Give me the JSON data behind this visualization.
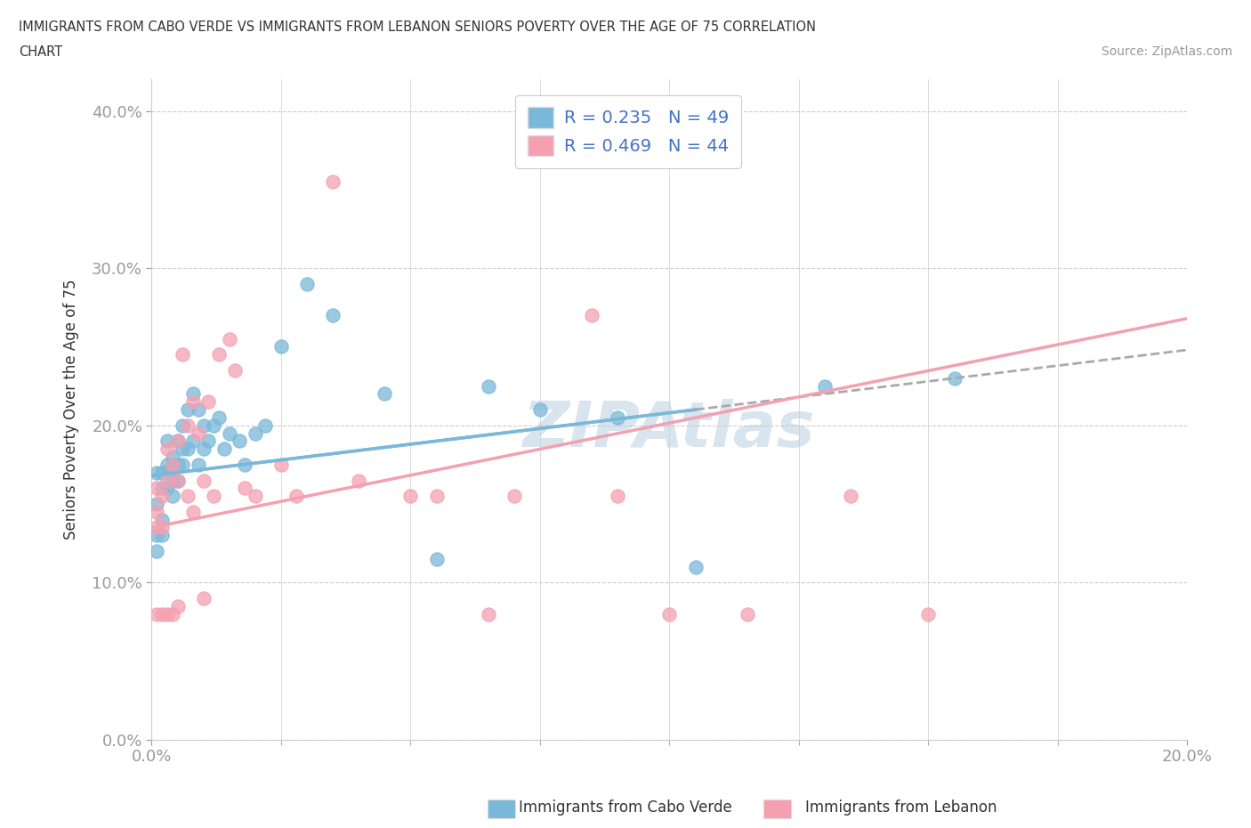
{
  "title_line1": "IMMIGRANTS FROM CABO VERDE VS IMMIGRANTS FROM LEBANON SENIORS POVERTY OVER THE AGE OF 75 CORRELATION",
  "title_line2": "CHART",
  "source": "Source: ZipAtlas.com",
  "ylabel": "Seniors Poverty Over the Age of 75",
  "xmin": 0.0,
  "xmax": 0.2,
  "ymin": 0.0,
  "ymax": 0.42,
  "cabo_verde_color": "#7ab8d9",
  "lebanon_color": "#f4a0b0",
  "cabo_verde_R": 0.235,
  "cabo_verde_N": 49,
  "lebanon_R": 0.469,
  "lebanon_N": 44,
  "cabo_verde_x": [
    0.001,
    0.001,
    0.001,
    0.001,
    0.002,
    0.002,
    0.002,
    0.002,
    0.003,
    0.003,
    0.003,
    0.004,
    0.004,
    0.004,
    0.004,
    0.005,
    0.005,
    0.005,
    0.006,
    0.006,
    0.006,
    0.007,
    0.007,
    0.008,
    0.008,
    0.009,
    0.009,
    0.01,
    0.01,
    0.011,
    0.012,
    0.013,
    0.014,
    0.015,
    0.017,
    0.018,
    0.02,
    0.022,
    0.025,
    0.03,
    0.035,
    0.045,
    0.055,
    0.065,
    0.075,
    0.09,
    0.105,
    0.13,
    0.155
  ],
  "cabo_verde_y": [
    0.17,
    0.15,
    0.13,
    0.12,
    0.17,
    0.16,
    0.14,
    0.13,
    0.19,
    0.175,
    0.16,
    0.18,
    0.175,
    0.165,
    0.155,
    0.19,
    0.175,
    0.165,
    0.2,
    0.185,
    0.175,
    0.21,
    0.185,
    0.22,
    0.19,
    0.21,
    0.175,
    0.2,
    0.185,
    0.19,
    0.2,
    0.205,
    0.185,
    0.195,
    0.19,
    0.175,
    0.195,
    0.2,
    0.25,
    0.29,
    0.27,
    0.22,
    0.115,
    0.225,
    0.21,
    0.205,
    0.11,
    0.225,
    0.23
  ],
  "lebanon_x": [
    0.001,
    0.001,
    0.001,
    0.001,
    0.002,
    0.002,
    0.002,
    0.003,
    0.003,
    0.003,
    0.004,
    0.004,
    0.005,
    0.005,
    0.005,
    0.006,
    0.007,
    0.007,
    0.008,
    0.008,
    0.009,
    0.01,
    0.01,
    0.011,
    0.012,
    0.013,
    0.015,
    0.016,
    0.018,
    0.02,
    0.025,
    0.028,
    0.035,
    0.04,
    0.05,
    0.055,
    0.065,
    0.07,
    0.085,
    0.09,
    0.1,
    0.115,
    0.135,
    0.15
  ],
  "lebanon_y": [
    0.16,
    0.145,
    0.135,
    0.08,
    0.155,
    0.135,
    0.08,
    0.185,
    0.165,
    0.08,
    0.175,
    0.08,
    0.19,
    0.165,
    0.085,
    0.245,
    0.2,
    0.155,
    0.215,
    0.145,
    0.195,
    0.165,
    0.09,
    0.215,
    0.155,
    0.245,
    0.255,
    0.235,
    0.16,
    0.155,
    0.175,
    0.155,
    0.355,
    0.165,
    0.155,
    0.155,
    0.08,
    0.155,
    0.27,
    0.155,
    0.08,
    0.08,
    0.155,
    0.08
  ],
  "cv_line_x0": 0.0,
  "cv_line_y0": 0.168,
  "cv_line_x1": 0.2,
  "cv_line_y1": 0.248,
  "cv_line_solid_end": 0.105,
  "lb_line_x0": 0.0,
  "lb_line_y0": 0.135,
  "lb_line_x1": 0.2,
  "lb_line_y1": 0.268,
  "watermark": "ZIPAtlas",
  "grid_color": "#cccccc",
  "background_color": "#ffffff"
}
